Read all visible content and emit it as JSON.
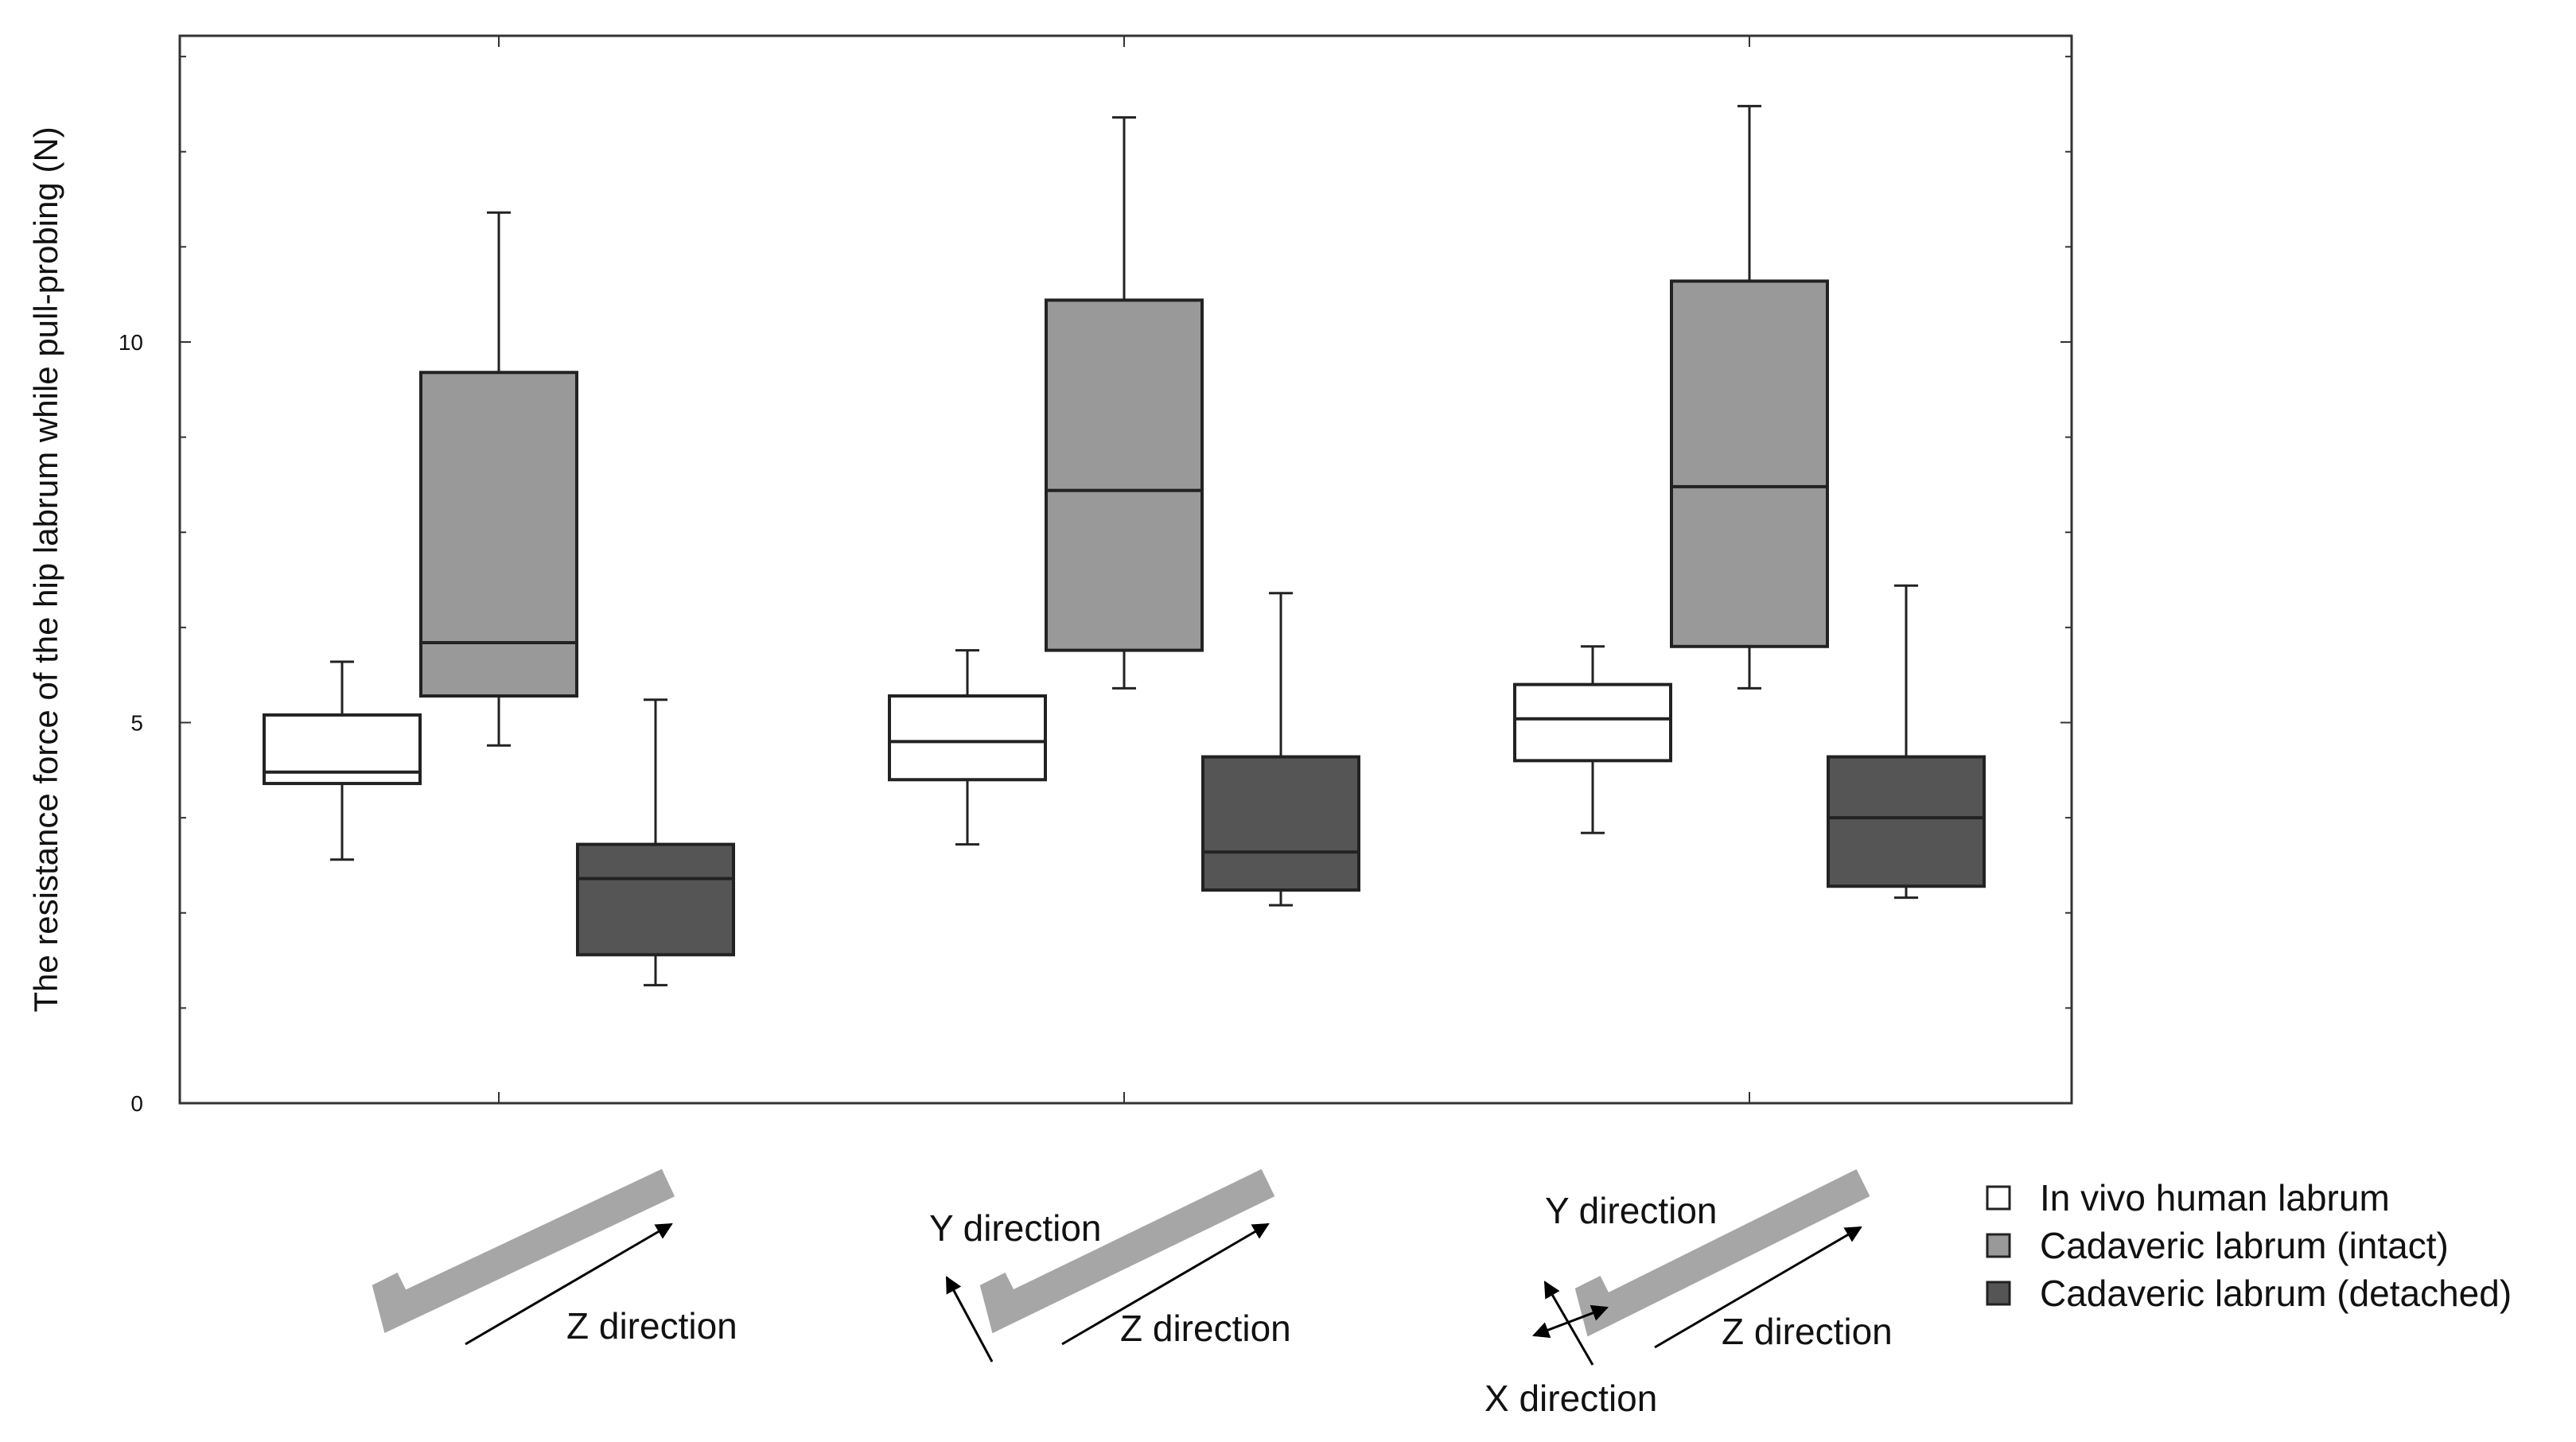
{
  "chart_data": {
    "type": "box",
    "title": "",
    "xlabel": "",
    "ylabel": "The resistance force of the hip labrum while pull-probing (N)",
    "ylim": [
      0,
      14
    ],
    "yticks": [
      0,
      5,
      10
    ],
    "grid": false,
    "legend_position": "bottom-right",
    "groups": [
      {
        "labels": [
          "Z direction"
        ]
      },
      {
        "labels": [
          "Y direction",
          "Z direction"
        ]
      },
      {
        "labels": [
          "Y direction",
          "Z direction",
          "X direction"
        ]
      }
    ],
    "series": [
      {
        "name": "In vivo human labrum",
        "color": "#ffffff",
        "boxes": [
          {
            "whisker_low": 3.2,
            "q1": 4.2,
            "median": 4.35,
            "q3": 5.1,
            "whisker_high": 5.8
          },
          {
            "whisker_low": 3.4,
            "q1": 4.25,
            "median": 4.75,
            "q3": 5.35,
            "whisker_high": 5.95
          },
          {
            "whisker_low": 3.55,
            "q1": 4.5,
            "median": 5.05,
            "q3": 5.5,
            "whisker_high": 6.0
          }
        ]
      },
      {
        "name": "Cadaveric labrum (intact)",
        "color": "#999999",
        "boxes": [
          {
            "whisker_low": 4.7,
            "q1": 5.35,
            "median": 6.05,
            "q3": 9.6,
            "whisker_high": 11.7
          },
          {
            "whisker_low": 5.45,
            "q1": 5.95,
            "median": 8.05,
            "q3": 10.55,
            "whisker_high": 12.95
          },
          {
            "whisker_low": 5.45,
            "q1": 6.0,
            "median": 8.1,
            "q3": 10.8,
            "whisker_high": 13.1
          }
        ]
      },
      {
        "name": "Cadaveric labrum (detached)",
        "color": "#555555",
        "boxes": [
          {
            "whisker_low": 1.55,
            "q1": 1.95,
            "median": 2.95,
            "q3": 3.4,
            "whisker_high": 5.3
          },
          {
            "whisker_low": 2.6,
            "q1": 2.8,
            "median": 3.3,
            "q3": 4.55,
            "whisker_high": 6.7
          },
          {
            "whisker_low": 2.7,
            "q1": 2.85,
            "median": 3.75,
            "q3": 4.55,
            "whisker_high": 6.8
          }
        ]
      }
    ]
  },
  "colors": {
    "axis": "#333333",
    "box_stroke": "#222222",
    "probe_shape": "#a6a6a6",
    "arrow": "#000000"
  }
}
